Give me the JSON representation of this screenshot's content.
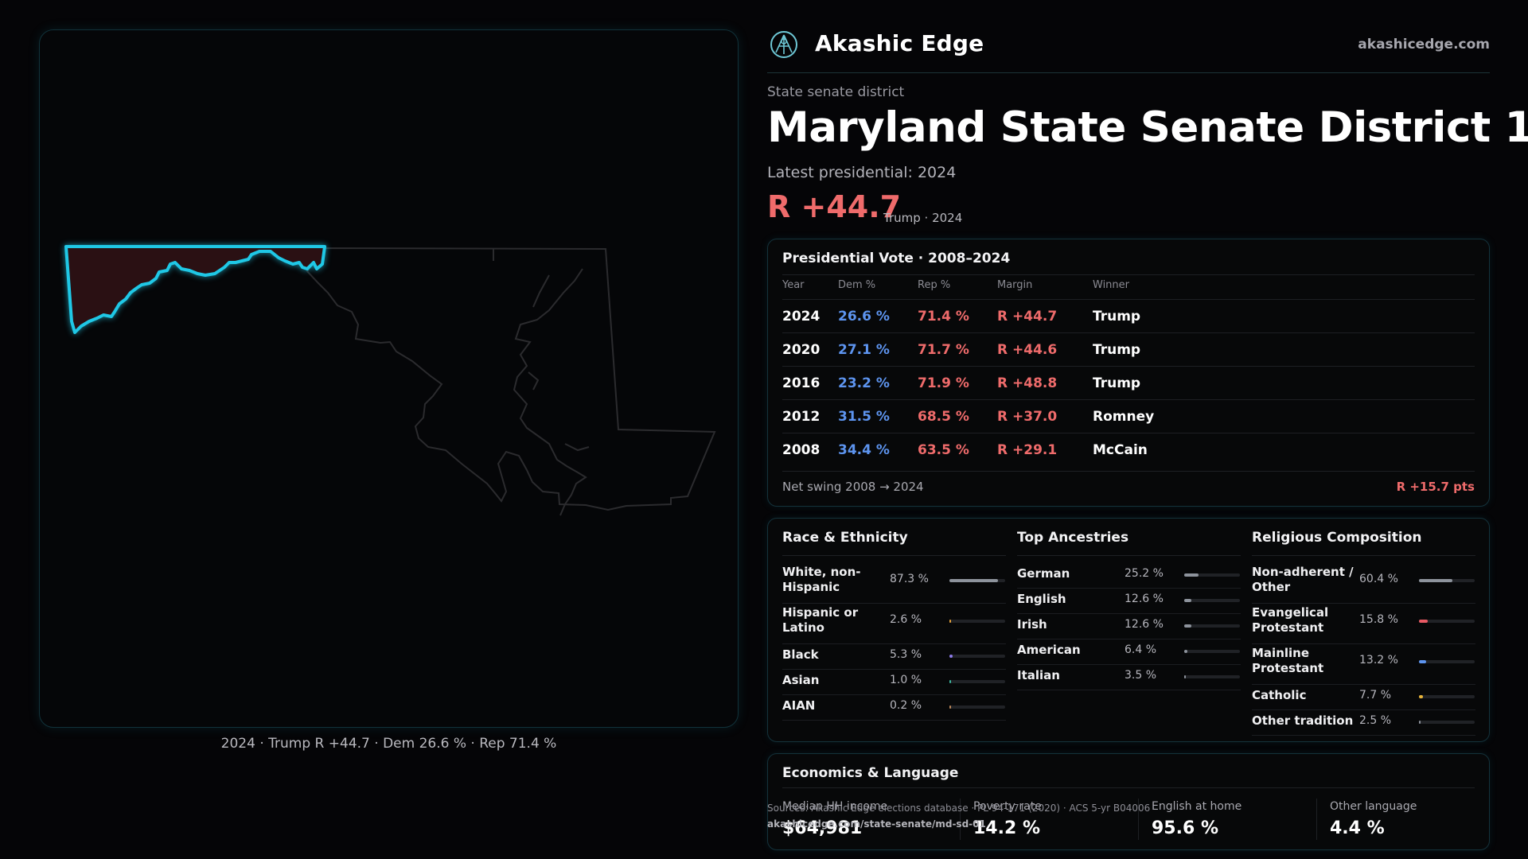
{
  "brand": {
    "name": "Akashic Edge",
    "site": "akashicedge.com"
  },
  "district": {
    "kicker": "State senate district",
    "title": "Maryland State Senate District 1",
    "latest": "Latest presidential: 2024",
    "margin": "R +44.7",
    "margin_sub": "Trump · 2024"
  },
  "map": {
    "caption": "2024 · Trump R +44.7 · Dem 26.6 % · Rep 71.4 %",
    "colors": {
      "district_outline": "#1fc8e6",
      "district_fill": "#2a1013",
      "state_outline": "#2b2b2e"
    }
  },
  "presidential": {
    "title": "Presidential Vote · 2008–2024",
    "headers": {
      "year": "Year",
      "dem": "Dem %",
      "rep": "Rep %",
      "margin": "Margin",
      "winner": "Winner"
    },
    "rows": [
      {
        "year": "2024",
        "dem": "26.6 %",
        "rep": "71.4 %",
        "margin": "R +44.7",
        "winner": "Trump"
      },
      {
        "year": "2020",
        "dem": "27.1 %",
        "rep": "71.7 %",
        "margin": "R +44.6",
        "winner": "Trump"
      },
      {
        "year": "2016",
        "dem": "23.2 %",
        "rep": "71.9 %",
        "margin": "R +48.8",
        "winner": "Trump"
      },
      {
        "year": "2012",
        "dem": "31.5 %",
        "rep": "68.5 %",
        "margin": "R +37.0",
        "winner": "Romney"
      },
      {
        "year": "2008",
        "dem": "34.4 %",
        "rep": "63.5 %",
        "margin": "R +29.1",
        "winner": "McCain"
      }
    ],
    "swing_label": "Net swing 2008 → 2024",
    "swing_value": "R +15.7 pts"
  },
  "race": {
    "title": "Race & Ethnicity",
    "items": [
      {
        "label": "White, non-Hispanic",
        "pct": "87.3 %",
        "value": 87.3,
        "color": "#8d939c"
      },
      {
        "label": "Hispanic or Latino",
        "pct": "2.6 %",
        "value": 2.6,
        "color": "#e8a33a"
      },
      {
        "label": "Black",
        "pct": "5.3 %",
        "value": 5.3,
        "color": "#8d7bea"
      },
      {
        "label": "Asian",
        "pct": "1.0 %",
        "value": 1.0,
        "color": "#3cb8a0"
      },
      {
        "label": "AIAN",
        "pct": "0.2 %",
        "value": 0.2,
        "color": "#c08a5a"
      }
    ]
  },
  "ancestry": {
    "title": "Top Ancestries",
    "items": [
      {
        "label": "German",
        "pct": "25.2 %",
        "value": 25.2,
        "color": "#8d939c"
      },
      {
        "label": "English",
        "pct": "12.6 %",
        "value": 12.6,
        "color": "#8d939c"
      },
      {
        "label": "Irish",
        "pct": "12.6 %",
        "value": 12.6,
        "color": "#8d939c"
      },
      {
        "label": "American",
        "pct": "6.4 %",
        "value": 6.4,
        "color": "#8d939c"
      },
      {
        "label": "Italian",
        "pct": "3.5 %",
        "value": 3.5,
        "color": "#8d939c"
      }
    ]
  },
  "religion": {
    "title": "Religious Composition",
    "items": [
      {
        "label": "Non-adherent / Other",
        "pct": "60.4 %",
        "value": 60.4,
        "color": "#8d939c"
      },
      {
        "label": "Evangelical Protestant",
        "pct": "15.8 %",
        "value": 15.8,
        "color": "#e85a64"
      },
      {
        "label": "Mainline Protestant",
        "pct": "13.2 %",
        "value": 13.2,
        "color": "#5d94ef"
      },
      {
        "label": "Catholic",
        "pct": "7.7 %",
        "value": 7.7,
        "color": "#e8b43a"
      },
      {
        "label": "Other tradition",
        "pct": "2.5 %",
        "value": 2.5,
        "color": "#8d939c"
      }
    ]
  },
  "economics": {
    "title": "Economics & Language",
    "items": [
      {
        "label": "Median HH income",
        "value": "$64,981"
      },
      {
        "label": "Poverty rate",
        "value": "14.2 %"
      },
      {
        "label": "English at home",
        "value": "95.6 %"
      },
      {
        "label": "Other language",
        "value": "4.4 %"
      }
    ]
  },
  "sources": {
    "line1": "Sources: Akashic Edge elections database · PL 94-171 (2020) · ACS 5-yr B04006",
    "line2": "akashicedge.com/state-senate/md-sd-01"
  }
}
